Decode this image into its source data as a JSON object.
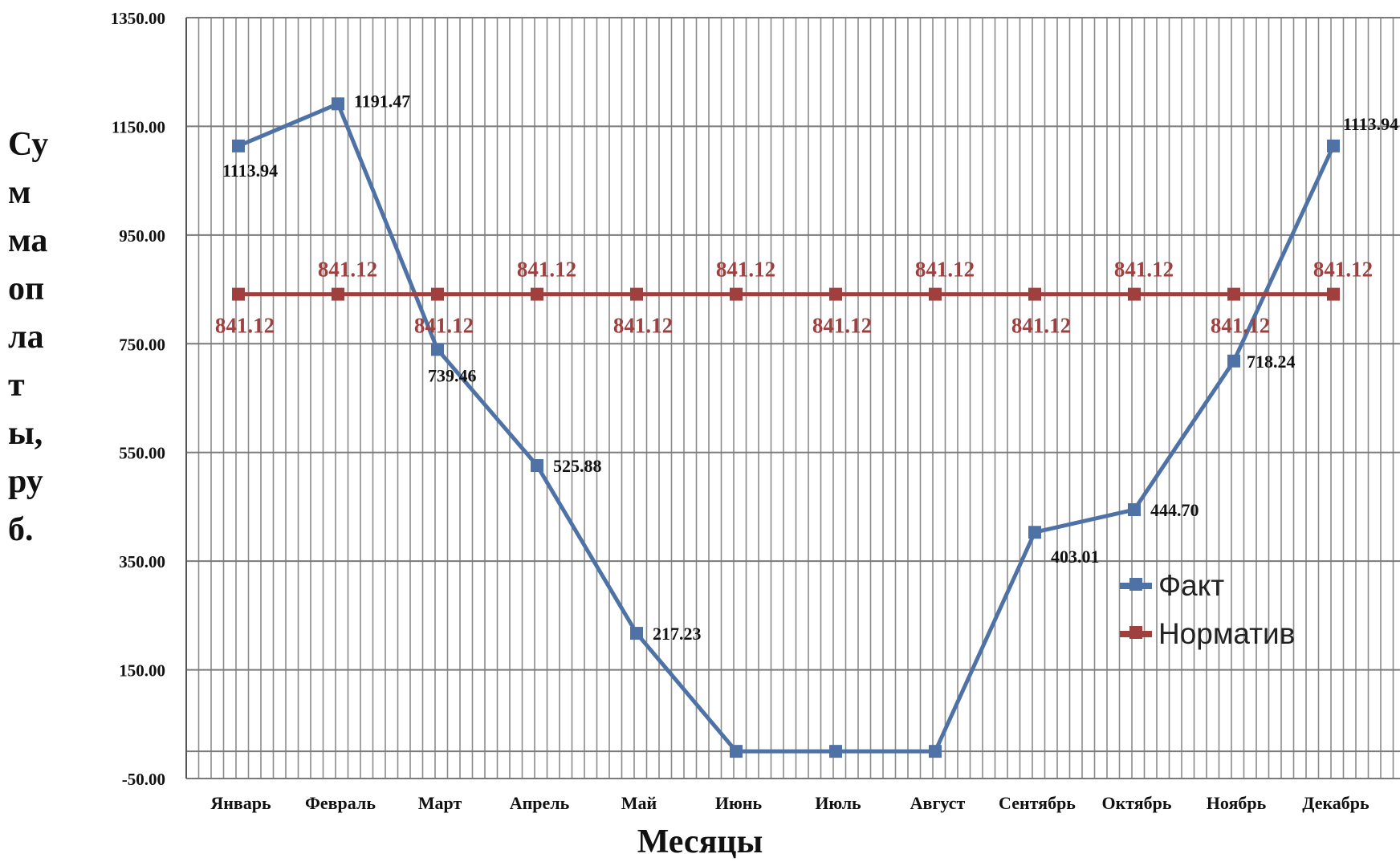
{
  "chart_data": {
    "type": "line",
    "title": "",
    "xlabel": "Месяцы",
    "ylabel_lines": [
      "Су",
      "м",
      "ма",
      "оп",
      "ла",
      "т",
      "ы,",
      "ру",
      "б."
    ],
    "ylim": [
      -50,
      1350
    ],
    "yticks": [
      -50,
      150,
      350,
      550,
      750,
      950,
      1150,
      1350
    ],
    "ytick_labels": [
      "-50.00",
      "150.00",
      "350.00",
      "550.00",
      "750.00",
      "950.00",
      "1150.00",
      "1350.00"
    ],
    "categories": [
      "Январь",
      "Февраль",
      "Март",
      "Апрель",
      "Май",
      "Июнь",
      "Июль",
      "Август",
      "Сентябрь",
      "Октябрь",
      "Ноябрь",
      "Декабрь"
    ],
    "grid": true,
    "legend_position": "right",
    "series": [
      {
        "name": "Факт",
        "color": "#4F72A6",
        "values": [
          1113.94,
          1191.47,
          739.46,
          525.88,
          217.23,
          0,
          0,
          0,
          403.01,
          444.7,
          718.24,
          1113.94
        ],
        "labels": [
          "1113.94",
          "1191.47",
          "739.46",
          "525.88",
          "217.23",
          "",
          "",
          "",
          "403.01",
          "444.70",
          "718.24",
          "1113.94"
        ]
      },
      {
        "name": "Норматив",
        "color": "#A0403E",
        "values": [
          841.12,
          841.12,
          841.12,
          841.12,
          841.12,
          841.12,
          841.12,
          841.12,
          841.12,
          841.12,
          841.12,
          841.12
        ],
        "labels": [
          "841.12",
          "841.12",
          "841.12",
          "841.12",
          "841.12",
          "841.12",
          "841.12",
          "841.12",
          "841.12",
          "841.12",
          "841.12",
          "841.12"
        ]
      }
    ]
  }
}
